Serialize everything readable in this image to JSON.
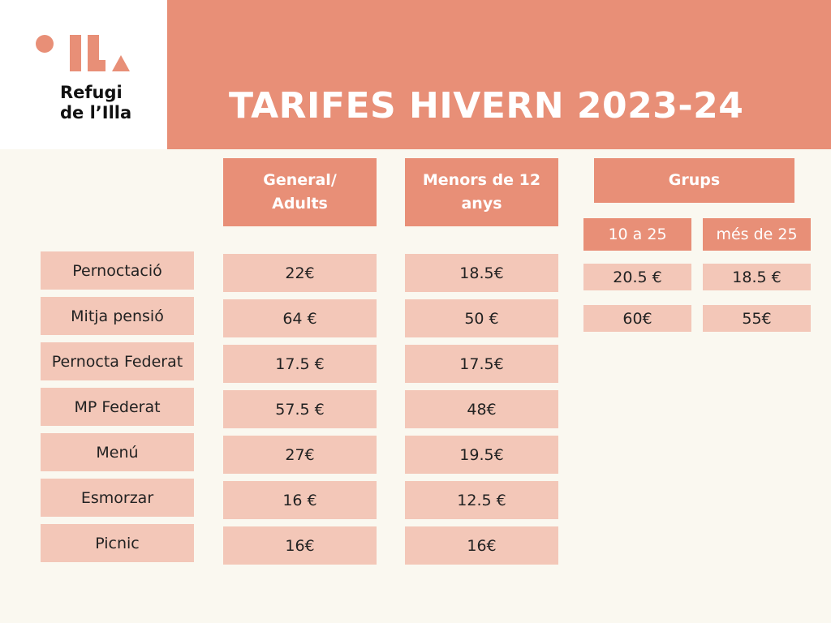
{
  "logo": {
    "line1": "Refugi",
    "line2": "de l’Illa"
  },
  "title": "TARIFES HIVERN 2023-24",
  "headers": {
    "general": "General/\nAdults",
    "menors": "Menors de 12\nanys",
    "grups": "Grups",
    "grups_sub": [
      "10 a 25",
      "més de 25"
    ]
  },
  "rows": [
    {
      "label": "Pernoctació",
      "general": "22€",
      "menors": "18.5€",
      "grup_10_25": "20.5 €",
      "grup_mes_25": "18.5 €"
    },
    {
      "label": "Mitja pensió",
      "general": "64 €",
      "menors": "50 €",
      "grup_10_25": "60€",
      "grup_mes_25": "55€"
    },
    {
      "label": "Pernocta Federat",
      "general": "17.5 €",
      "menors": "17.5€"
    },
    {
      "label": "MP Federat",
      "general": "57.5 €",
      "menors": "48€"
    },
    {
      "label": "Menú",
      "general": "27€",
      "menors": "19.5€"
    },
    {
      "label": "Esmorzar",
      "general": "16 €",
      "menors": "12.5 €"
    },
    {
      "label": "Picnic",
      "general": "16€",
      "menors": "16€"
    }
  ],
  "colors": {
    "accent": "#e88f77",
    "cell": "#f3c7b8",
    "background": "#faf8f0"
  }
}
